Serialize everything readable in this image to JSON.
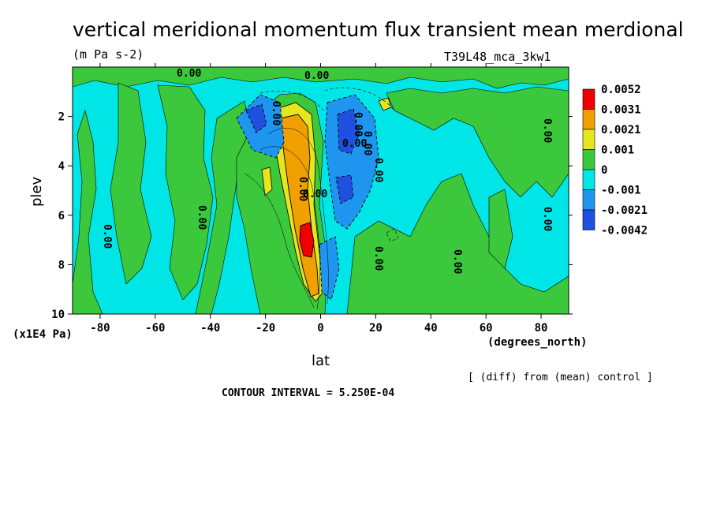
{
  "chart_data": {
    "type": "heatmap",
    "title": "vertical meridional momentum flux transient mean merdional",
    "units": "(m Pa s-2)",
    "run_label": "T39L48_mca_3kw1",
    "xlabel": "lat",
    "xunits": "(degrees_north)",
    "ylabel": "plev",
    "yunits": "(x1E4 Pa)",
    "xlim": [
      -90,
      90
    ],
    "ylim": [
      10,
      0
    ],
    "x_ticks": [
      "-80",
      "-60",
      "-40",
      "-20",
      "0",
      "20",
      "40",
      "60",
      "80"
    ],
    "y_ticks": [
      "2",
      "4",
      "6",
      "8",
      "10"
    ],
    "legend": {
      "labels": [
        "0.0052",
        "0.0031",
        "0.0021",
        "0.001",
        "0",
        "-0.001",
        "-0.0021",
        "-0.0042"
      ],
      "colors": [
        "#f00000",
        "#f0a000",
        "#e6e61e",
        "#3cc83c",
        "#00e6e6",
        "#1e96f0",
        "#2050e0"
      ]
    },
    "contour_interval": "CONTOUR INTERVAL = 5.250E-04",
    "note": "[ (diff) from (mean) control ]",
    "contour_labels": [
      "0.00",
      "0.00",
      "0.00",
      "0.00",
      "0.00",
      "0.00",
      "0.00",
      "0.00",
      "0.00",
      "0.00",
      "0.00",
      "0.00",
      "0.00",
      "0.00",
      "0.00"
    ],
    "features": [
      {
        "name": "positive-core",
        "lat": -5,
        "plev": 6.8,
        "level": 0.0052
      },
      {
        "name": "positive-band",
        "lat": -9,
        "plev": 4.0,
        "level": 0.0031
      },
      {
        "name": "negative-upper",
        "lat": 9,
        "plev": 2.8,
        "level": -0.0042
      },
      {
        "name": "negative-middle",
        "lat": 9,
        "plev": 5.0,
        "level": -0.0042
      },
      {
        "name": "negative-left",
        "lat": -23,
        "plev": 2.3,
        "level": -0.0021
      }
    ]
  }
}
